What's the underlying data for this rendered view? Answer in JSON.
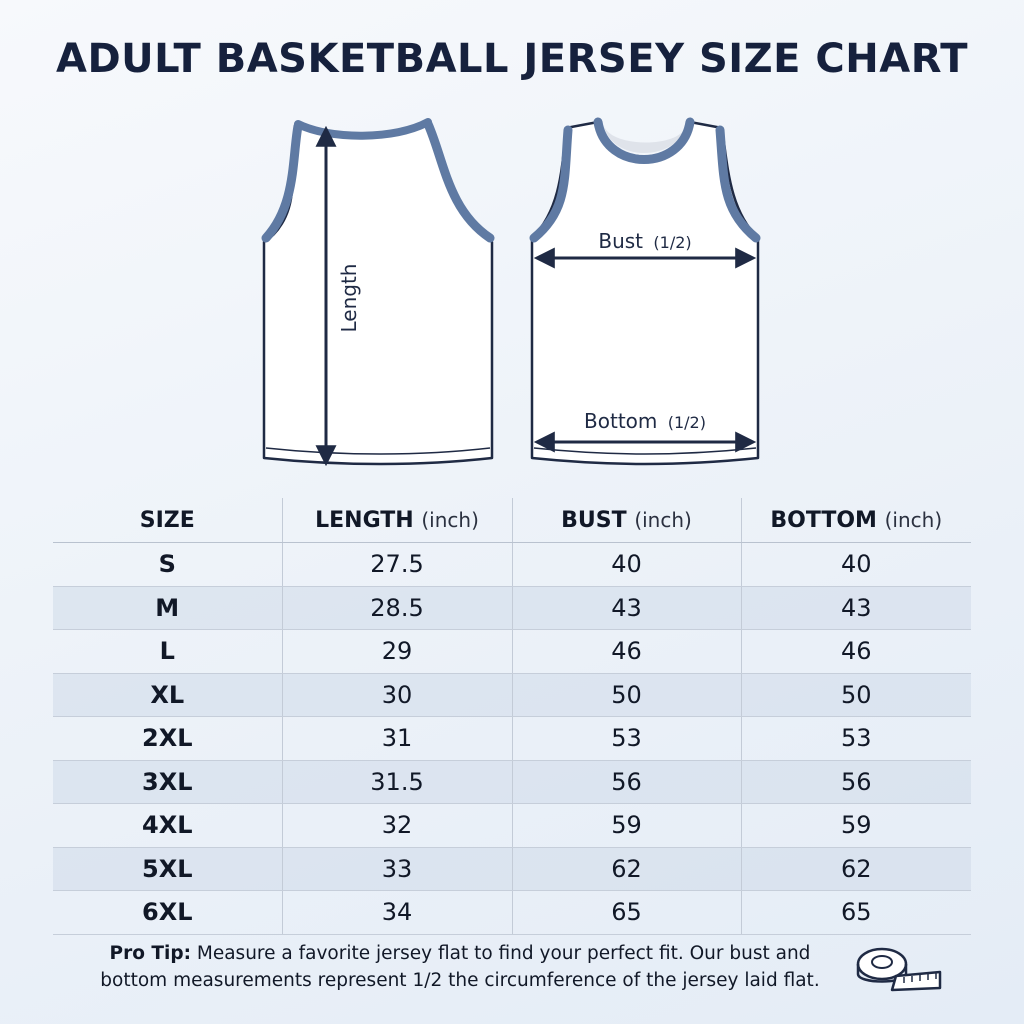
{
  "title": "ADULT BASKETBALL JERSEY SIZE CHART",
  "illustration": {
    "back_label": "Length",
    "front_bust_label": "Bust",
    "front_bust_fraction": "(1/2)",
    "front_bottom_label": "Bottom",
    "front_bottom_fraction": "(1/2)"
  },
  "table": {
    "headers": [
      {
        "label": "SIZE",
        "unit": ""
      },
      {
        "label": "LENGTH",
        "unit": "(inch)"
      },
      {
        "label": "BUST",
        "unit": "(inch)"
      },
      {
        "label": "BOTTOM",
        "unit": "(inch)"
      }
    ],
    "rows": [
      {
        "size": "S",
        "length": "27.5",
        "bust": "40",
        "bottom": "40"
      },
      {
        "size": "M",
        "length": "28.5",
        "bust": "43",
        "bottom": "43"
      },
      {
        "size": "L",
        "length": "29",
        "bust": "46",
        "bottom": "46"
      },
      {
        "size": "XL",
        "length": "30",
        "bust": "50",
        "bottom": "50"
      },
      {
        "size": "2XL",
        "length": "31",
        "bust": "53",
        "bottom": "53"
      },
      {
        "size": "3XL",
        "length": "31.5",
        "bust": "56",
        "bottom": "56"
      },
      {
        "size": "4XL",
        "length": "32",
        "bust": "59",
        "bottom": "59"
      },
      {
        "size": "5XL",
        "length": "33",
        "bust": "62",
        "bottom": "62"
      },
      {
        "size": "6XL",
        "length": "34",
        "bust": "65",
        "bottom": "65"
      }
    ]
  },
  "tip": {
    "lead": "Pro Tip:",
    "line1": "Measure a favorite jersey flat to find your perfect fit. Our bust and",
    "line2": "bottom measurements represent 1/2 the circumference of the jersey laid flat."
  },
  "colors": {
    "title": "#16213d",
    "trim": "#5f7aa3",
    "outline": "#1f2a44",
    "row_shade": "#d0dbea"
  },
  "icons": [
    "measuring-tape-icon"
  ]
}
